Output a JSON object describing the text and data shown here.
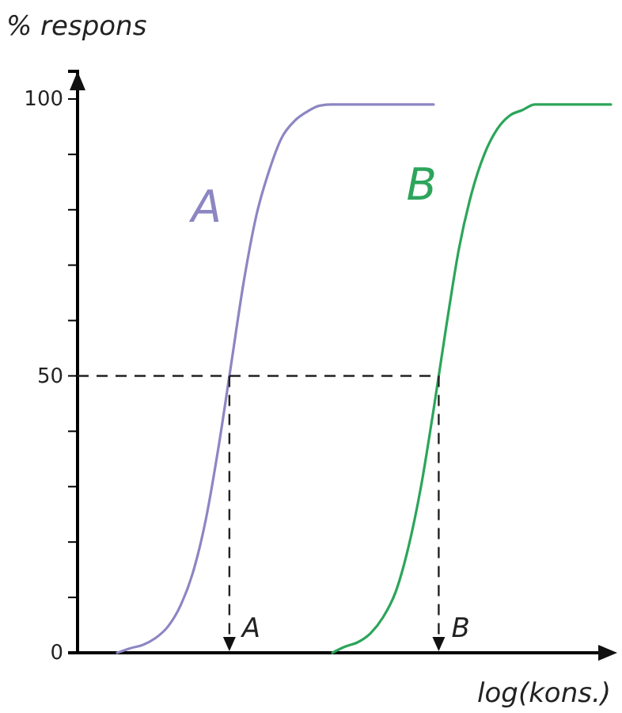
{
  "chart_data": {
    "type": "line",
    "ylabel": "% respons",
    "xlabel": "log(kons.)",
    "categories": [
      null,
      null,
      null,
      null,
      null,
      null,
      null,
      null,
      null,
      null,
      null,
      null,
      null,
      null,
      null,
      null,
      null,
      null,
      null,
      null,
      null,
      null,
      null,
      null,
      null,
      null,
      null,
      null,
      null,
      null,
      null,
      null,
      null,
      null,
      null,
      null,
      null,
      null,
      null,
      null,
      null
    ],
    "series": [
      {
        "name": "A",
        "color": "#8c86c2",
        "values": [
          null,
          0,
          0.8,
          1.4,
          2.6,
          4.7,
          8.5,
          14.6,
          24,
          37,
          52,
          67,
          79,
          87,
          93,
          96,
          97.7,
          98.8,
          99,
          99,
          99,
          99,
          99,
          99,
          99,
          99,
          99,
          null,
          null,
          null,
          null,
          null,
          null,
          null,
          null,
          null,
          null,
          null,
          null,
          null,
          null
        ]
      },
      {
        "name": "B",
        "color": "#2ca55a",
        "values": [
          null,
          null,
          null,
          null,
          null,
          null,
          null,
          null,
          null,
          null,
          null,
          null,
          null,
          null,
          null,
          null,
          null,
          null,
          0,
          1.1,
          1.9,
          3.5,
          6.4,
          11,
          19,
          30,
          44,
          59,
          73,
          83,
          90,
          94.5,
          97,
          98,
          99,
          99,
          99,
          99,
          99,
          99,
          99
        ]
      }
    ],
    "ylim": [
      0,
      105
    ],
    "yticks": [
      0,
      {
        "value": 10,
        "label": null
      },
      {
        "value": 20,
        "label": null
      },
      {
        "value": 30,
        "label": null
      },
      {
        "value": 40,
        "label": null
      },
      50,
      {
        "value": 60,
        "label": null
      },
      {
        "value": 70,
        "label": null
      },
      {
        "value": 80,
        "label": null
      },
      {
        "value": 90,
        "label": null
      },
      100
    ],
    "ref_lines": [
      {
        "axis": "y",
        "value": 50,
        "line_style": "dashed"
      }
    ],
    "annotations": [
      "A",
      "B"
    ],
    "grid": false,
    "legend": false,
    "marker": "none",
    "line_style": "solid"
  }
}
